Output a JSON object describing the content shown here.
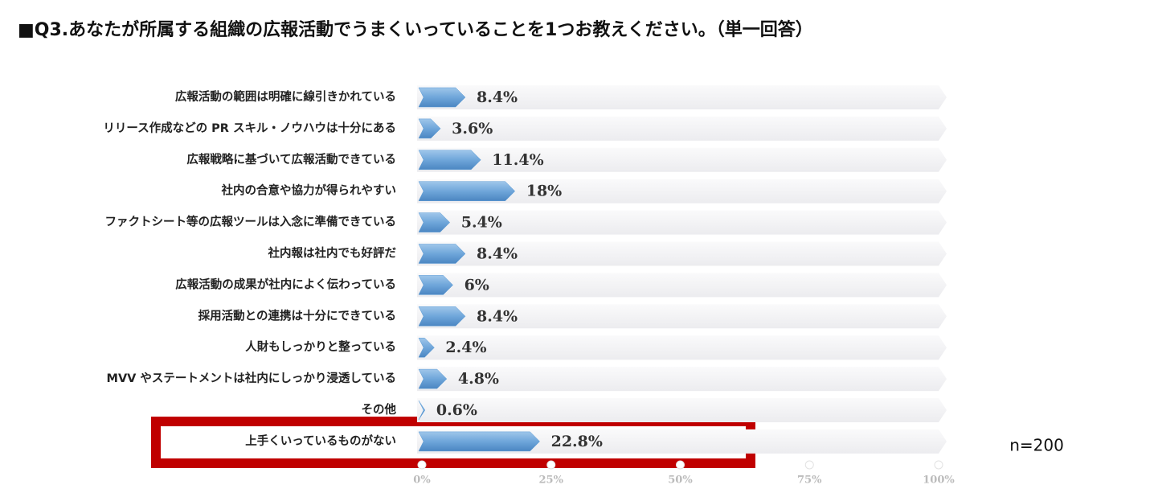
{
  "chart_data": {
    "type": "bar",
    "orientation": "horizontal",
    "title": "■Q3.あなたが所属する組織の広報活動でうまくいっていることを1つお教えください。（単一回答）",
    "categories": [
      "広報活動の範囲は明確に線引きかれている",
      "リリース作成などの PR スキル・ノウハウは十分にある",
      "広報戦略に基づいて広報活動できている",
      "社内の合意や協力が得られやすい",
      "ファクトシート等の広報ツールは入念に準備できている",
      "社内報は社内でも好評だ",
      "広報活動の成果が社内によく伝わっている",
      "採用活動との連携は十分にできている",
      "人財もしっかりと整っている",
      "MVV やステートメントは社内にしっかり浸透している",
      "その他",
      "上手くいっているものがない"
    ],
    "values": [
      8.4,
      3.6,
      11.4,
      18,
      5.4,
      8.4,
      6,
      8.4,
      2.4,
      4.8,
      0.6,
      22.8
    ],
    "value_labels": [
      "8.4%",
      "3.6%",
      "11.4%",
      "18%",
      "5.4%",
      "8.4%",
      "6%",
      "8.4%",
      "2.4%",
      "4.8%",
      "0.6%",
      "22.8%"
    ],
    "color": "#5b9bd5",
    "xlim": [
      0,
      100
    ],
    "xticks": [
      {
        "value": 0,
        "label": "0%"
      },
      {
        "value": 25,
        "label": "25%"
      },
      {
        "value": 50,
        "label": "50%"
      },
      {
        "value": 75,
        "label": "75%"
      },
      {
        "value": 100,
        "label": "100%"
      }
    ],
    "annotation": "n=200"
  }
}
